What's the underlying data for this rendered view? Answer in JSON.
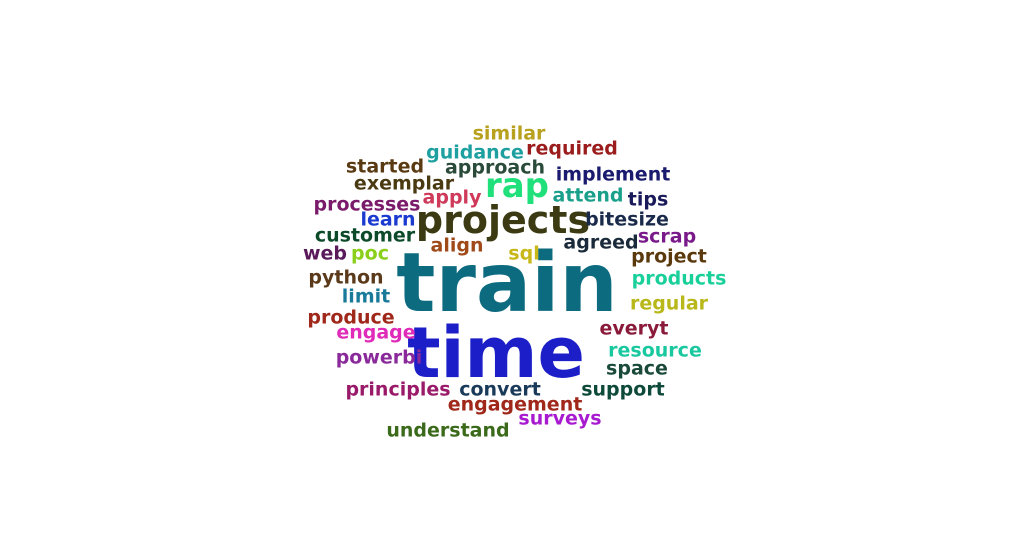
{
  "words": [
    {
      "text": "train",
      "color": "#0d6b80"
    },
    {
      "text": "time",
      "color": "#1c1fc8"
    },
    {
      "text": "projects",
      "color": "#3b3a12"
    },
    {
      "text": "rap",
      "color": "#1fe07a"
    },
    {
      "text": "similar",
      "color": "#b8a11e"
    },
    {
      "text": "required",
      "color": "#9b1c1c"
    },
    {
      "text": "guidance",
      "color": "#1fa0a0"
    },
    {
      "text": "approach",
      "color": "#2a4a3a"
    },
    {
      "text": "started",
      "color": "#5a3a12"
    },
    {
      "text": "implement",
      "color": "#1a1a6e"
    },
    {
      "text": "exemplar",
      "color": "#4a3a12"
    },
    {
      "text": "apply",
      "color": "#d03a5a"
    },
    {
      "text": "attend",
      "color": "#1aa08a"
    },
    {
      "text": "processes",
      "color": "#7a1a6a"
    },
    {
      "text": "tips",
      "color": "#1a1a5a"
    },
    {
      "text": "learn",
      "color": "#1a3ad0"
    },
    {
      "text": "bitesize",
      "color": "#1a2a4a"
    },
    {
      "text": "customer",
      "color": "#0d4a2a"
    },
    {
      "text": "scrap",
      "color": "#7a1a8a"
    },
    {
      "text": "align",
      "color": "#a04a1a"
    },
    {
      "text": "agreed",
      "color": "#1a2a3a"
    },
    {
      "text": "web",
      "color": "#5a1a5a"
    },
    {
      "text": "poc",
      "color": "#8ad01a"
    },
    {
      "text": "sql",
      "color": "#c8b81a"
    },
    {
      "text": "project",
      "color": "#5a3a0d"
    },
    {
      "text": "python",
      "color": "#5a3a1a"
    },
    {
      "text": "products",
      "color": "#1ad09a"
    },
    {
      "text": "limit",
      "color": "#1a7a9a"
    },
    {
      "text": "regular",
      "color": "#b8b81a"
    },
    {
      "text": "produce",
      "color": "#a0281a"
    },
    {
      "text": "everyt",
      "color": "#8a1a3a"
    },
    {
      "text": "engage",
      "color": "#e02ab8"
    },
    {
      "text": "resource",
      "color": "#1ac8a0"
    },
    {
      "text": "powerbi",
      "color": "#8a2a9a"
    },
    {
      "text": "space",
      "color": "#1a4a3a"
    },
    {
      "text": "principles",
      "color": "#9a1a6a"
    },
    {
      "text": "convert",
      "color": "#1a3a5a"
    },
    {
      "text": "support",
      "color": "#0d4a3a"
    },
    {
      "text": "engagement",
      "color": "#a0281a"
    },
    {
      "text": "surveys",
      "color": "#a81ad0"
    },
    {
      "text": "understand",
      "color": "#3a6a1a"
    }
  ]
}
